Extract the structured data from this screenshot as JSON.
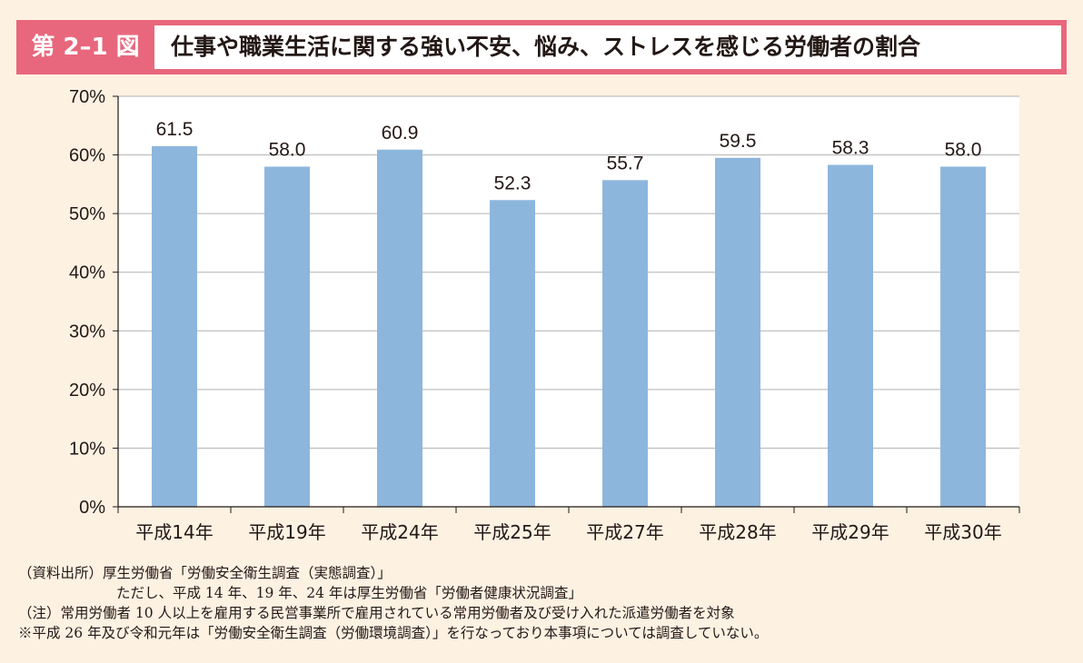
{
  "figure": {
    "number": "第 2–1 図",
    "title": "仕事や職業生活に関する強い不安、悩み、ストレスを感じる労働者の割合"
  },
  "chart_data": {
    "type": "bar",
    "categories": [
      "平成14年",
      "平成19年",
      "平成24年",
      "平成25年",
      "平成27年",
      "平成28年",
      "平成29年",
      "平成30年"
    ],
    "values": [
      61.5,
      58.0,
      60.9,
      52.3,
      55.7,
      59.5,
      58.3,
      58.0
    ],
    "value_labels": [
      "61.5",
      "58.0",
      "60.9",
      "52.3",
      "55.7",
      "59.5",
      "58.3",
      "58.0"
    ],
    "ylim": [
      0,
      70
    ],
    "yticks": [
      0,
      10,
      20,
      30,
      40,
      50,
      60,
      70
    ],
    "ytick_labels": [
      "0%",
      "10%",
      "20%",
      "30%",
      "40%",
      "50%",
      "60%",
      "70%"
    ],
    "grid": true,
    "bar_color": "#8db6dd"
  },
  "notes": [
    "（資料出所）厚生労働省「労働安全衛生調査（実態調査）」",
    "ただし、平成 14 年、19 年、24 年は厚生労働省「労働者健康状況調査」",
    "（注）常用労働者 10 人以上を雇用する民営事業所で雇用されている常用労働者及び受け入れた派遣労働者を対象",
    "※平成 26 年及び令和元年は「労働安全衛生調査（労働環境調査）」を行なっており本事項については調査していない。"
  ]
}
